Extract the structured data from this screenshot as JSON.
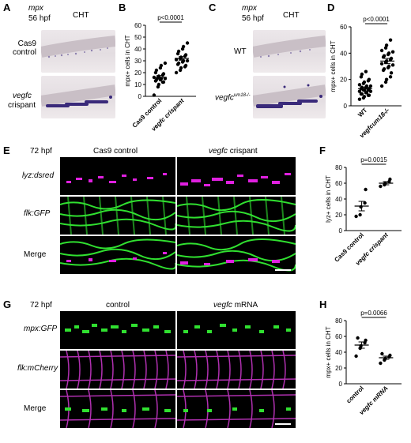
{
  "panel_letters": {
    "A": "A",
    "B": "B",
    "C": "C",
    "D": "D",
    "E": "E",
    "F": "F",
    "G": "G",
    "H": "H"
  },
  "A": {
    "gene": "mpx",
    "stage": "56 hpf",
    "region": "CHT",
    "row1_label": "Cas9\ncontrol",
    "row2_gene": "vegfc",
    "row2_word": "crispant"
  },
  "C": {
    "gene": "mpx",
    "stage": "56 hpf",
    "region": "CHT",
    "row1_label": "WT",
    "row2_gene": "vegfc",
    "row2_allele": "um18-/-"
  },
  "E": {
    "stage": "72 hpf",
    "col1": "Cas9 control",
    "col2_gene": "vegfc",
    "col2_word": "crispant",
    "rows": [
      "lyz:dsred",
      "flk:GFP",
      "Merge"
    ]
  },
  "G": {
    "stage": "72 hpf",
    "col1": "control",
    "col2_gene": "vegfc",
    "col2_word": "mRNA",
    "rows": [
      "mpx:GFP",
      "flk:mCherry",
      "Merge"
    ]
  },
  "colors": {
    "magenta": "#e020e0",
    "green": "#30e030",
    "purple_stain": "#3a2a7a"
  },
  "chart_data": [
    {
      "panel": "B",
      "type": "scatter",
      "ylabel": "mpx+ cells in CHT",
      "ylim": [
        0,
        60
      ],
      "yticks": [
        0,
        10,
        20,
        30,
        40,
        50,
        60
      ],
      "categories": [
        "Cas9 control",
        "vegfc crispant"
      ],
      "pvalue": "p<0.0001",
      "series": [
        {
          "values": [
            1,
            8,
            10,
            12,
            12,
            13,
            14,
            14,
            15,
            15,
            16,
            16,
            17,
            18,
            19,
            20,
            22,
            24,
            26,
            28
          ],
          "mean": 16,
          "sem": 1.5
        },
        {
          "values": [
            20,
            22,
            24,
            25,
            26,
            27,
            28,
            29,
            30,
            30,
            31,
            32,
            33,
            34,
            35,
            36,
            38,
            40,
            42,
            45
          ],
          "mean": 32,
          "sem": 1.5
        }
      ]
    },
    {
      "panel": "D",
      "type": "scatter",
      "ylabel": "mpx+ cells in CHT",
      "ylim": [
        0,
        60
      ],
      "yticks": [
        0,
        20,
        40,
        60
      ],
      "categories": [
        "WT",
        "vegfcum18-/-"
      ],
      "pvalue": "p<0.0001",
      "series": [
        {
          "values": [
            5,
            6,
            7,
            8,
            8,
            9,
            9,
            10,
            10,
            11,
            11,
            12,
            12,
            12,
            13,
            13,
            14,
            14,
            15,
            15,
            16,
            17,
            18,
            19,
            20,
            22,
            24,
            26
          ],
          "mean": 13,
          "sem": 1
        },
        {
          "values": [
            15,
            18,
            20,
            22,
            25,
            27,
            28,
            29,
            30,
            31,
            32,
            33,
            34,
            35,
            36,
            37,
            38,
            39,
            40,
            41,
            42,
            44,
            46,
            50
          ],
          "mean": 34,
          "sem": 2
        }
      ]
    },
    {
      "panel": "F",
      "type": "scatter",
      "ylabel": "lyz+ cells in CHT",
      "ylim": [
        0,
        80
      ],
      "yticks": [
        0,
        20,
        40,
        60,
        80
      ],
      "categories": [
        "Cas9 control",
        "vegfc crispant"
      ],
      "pvalue": "p=0.0015",
      "series": [
        {
          "values": [
            18,
            20,
            30,
            35,
            52
          ],
          "mean": 31,
          "sem": 6
        },
        {
          "values": [
            56,
            58,
            60,
            62,
            65
          ],
          "mean": 60,
          "sem": 2
        }
      ]
    },
    {
      "panel": "H",
      "type": "scatter",
      "ylabel": "mpx+ cells in CHT",
      "ylim": [
        0,
        80
      ],
      "yticks": [
        0,
        20,
        40,
        60,
        80
      ],
      "categories": [
        "control",
        "vegfc mRNA"
      ],
      "pvalue": "p=0.0066",
      "series": [
        {
          "values": [
            35,
            45,
            48,
            52,
            55,
            58
          ],
          "mean": 49,
          "sem": 4
        },
        {
          "values": [
            26,
            30,
            32,
            34,
            36,
            38
          ],
          "mean": 33,
          "sem": 2
        }
      ]
    }
  ]
}
